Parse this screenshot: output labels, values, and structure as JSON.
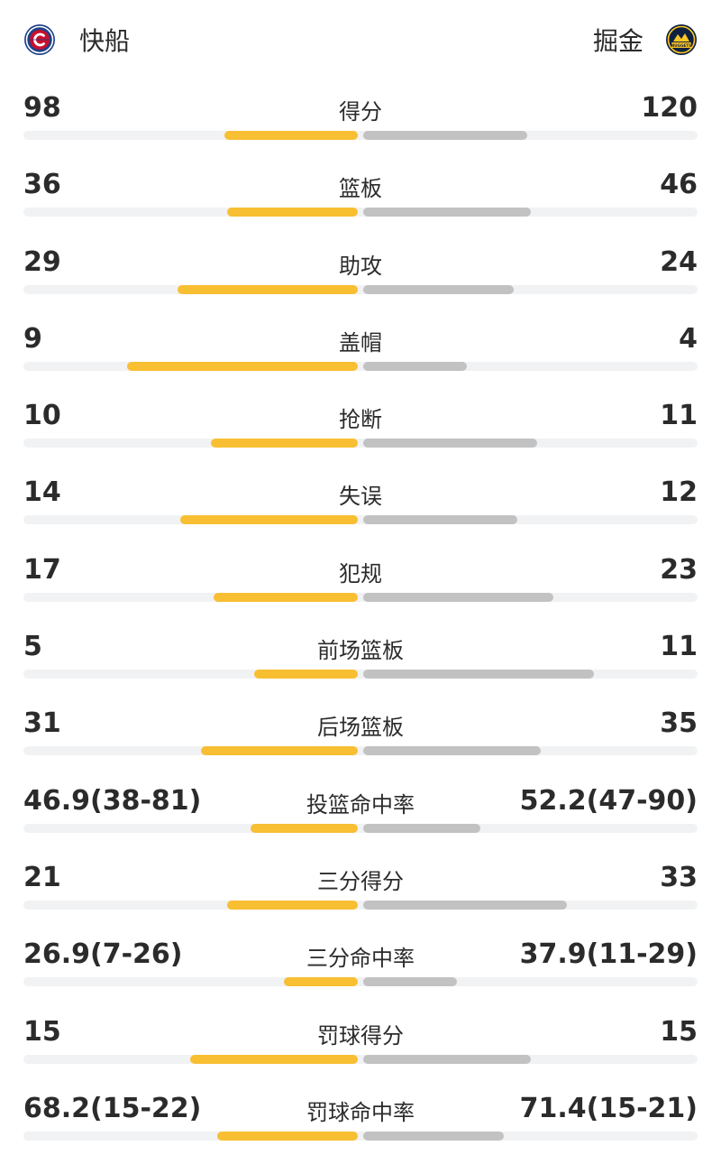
{
  "header": {
    "home_team": "快船",
    "away_team": "掘金",
    "home_logo_icon": "clippers-logo-icon",
    "away_logo_icon": "nuggets-logo-icon",
    "away_logo_text": "NUGGETS"
  },
  "colors": {
    "home_bar": "#f8bf33",
    "away_bar": "#c2c2c2",
    "track": "#f1f2f4"
  },
  "stats": [
    {
      "label": "得分",
      "left": "98",
      "right": "120",
      "left_fill": 0.4,
      "right_fill": 0.49
    },
    {
      "label": "篮板",
      "left": "36",
      "right": "46",
      "left_fill": 0.39,
      "right_fill": 0.5
    },
    {
      "label": "助攻",
      "left": "29",
      "right": "24",
      "left_fill": 0.54,
      "right_fill": 0.45
    },
    {
      "label": "盖帽",
      "left": "9",
      "right": "4",
      "left_fill": 0.69,
      "right_fill": 0.31
    },
    {
      "label": "抢断",
      "left": "10",
      "right": "11",
      "left_fill": 0.44,
      "right_fill": 0.52
    },
    {
      "label": "失误",
      "left": "14",
      "right": "12",
      "left_fill": 0.53,
      "right_fill": 0.46
    },
    {
      "label": "犯规",
      "left": "17",
      "right": "23",
      "left_fill": 0.43,
      "right_fill": 0.57
    },
    {
      "label": "前场篮板",
      "left": "5",
      "right": "11",
      "left_fill": 0.31,
      "right_fill": 0.69
    },
    {
      "label": "后场篮板",
      "left": "31",
      "right": "35",
      "left_fill": 0.47,
      "right_fill": 0.53
    },
    {
      "label": "投篮命中率",
      "left": "46.9(38-81)",
      "right": "52.2(47-90)",
      "left_fill": 0.32,
      "right_fill": 0.35
    },
    {
      "label": "三分得分",
      "left": "21",
      "right": "33",
      "left_fill": 0.39,
      "right_fill": 0.61
    },
    {
      "label": "三分命中率",
      "left": "26.9(7-26)",
      "right": "37.9(11-29)",
      "left_fill": 0.22,
      "right_fill": 0.28
    },
    {
      "label": "罚球得分",
      "left": "15",
      "right": "15",
      "left_fill": 0.5,
      "right_fill": 0.5
    },
    {
      "label": "罚球命中率",
      "left": "68.2(15-22)",
      "right": "71.4(15-21)",
      "left_fill": 0.42,
      "right_fill": 0.42
    }
  ]
}
